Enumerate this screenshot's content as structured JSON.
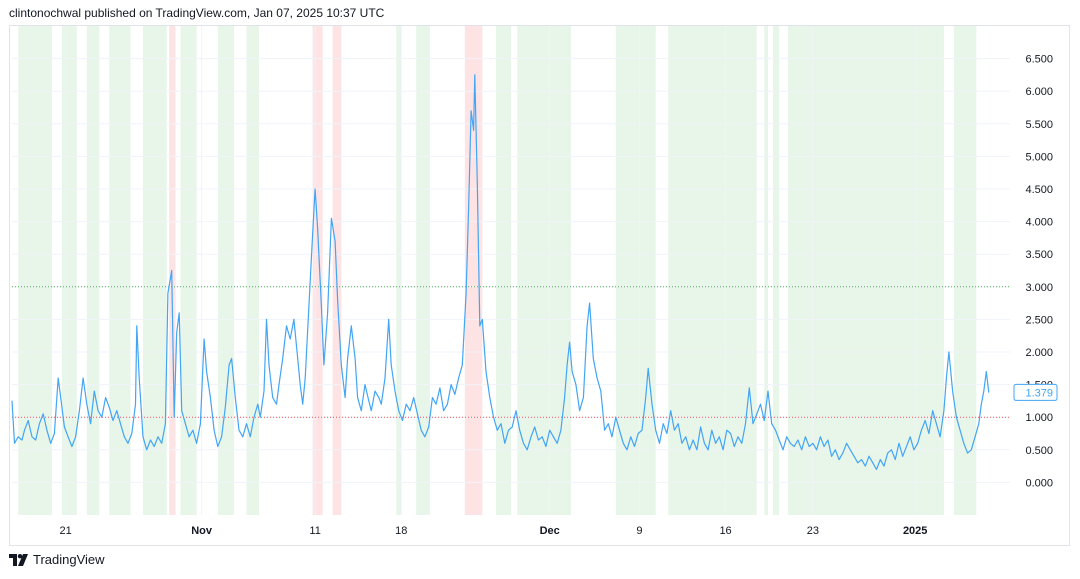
{
  "header": {
    "attribution": "clintonochwal published on TradingView.com, Jan 07, 2025 10:37 UTC"
  },
  "footer": {
    "brand": "TradingView",
    "logo_icon": "tradingview-logo-icon"
  },
  "colors": {
    "line": "#42a5f5",
    "green_band": "#e8f5e9",
    "red_band": "#fde3e4",
    "upper_level": "#4caf50",
    "lower_level": "#ef5350",
    "grid": "#f0f3fa",
    "axis_text": "#131722"
  },
  "chart_data": {
    "type": "line",
    "title": "",
    "xlabel": "",
    "ylabel": "",
    "ylim": [
      -0.5,
      7.0
    ],
    "xlim": [
      0,
      80
    ],
    "y_ticks": [
      0.0,
      0.5,
      1.0,
      1.5,
      2.0,
      2.5,
      3.0,
      3.5,
      4.0,
      4.5,
      5.0,
      5.5,
      6.0,
      6.5
    ],
    "y_tick_labels": [
      "0.000",
      "0.500",
      "1.000",
      "1.500",
      "2.000",
      "2.500",
      "3.000",
      "3.500",
      "4.000",
      "4.500",
      "5.000",
      "5.500",
      "6.000",
      "6.500"
    ],
    "x_ticks": [
      {
        "x": 4.3,
        "label": "21",
        "bold": false
      },
      {
        "x": 15.2,
        "label": "Nov",
        "bold": true
      },
      {
        "x": 24.3,
        "label": "11",
        "bold": false
      },
      {
        "x": 31.2,
        "label": "18",
        "bold": false
      },
      {
        "x": 43.1,
        "label": "Dec",
        "bold": true
      },
      {
        "x": 50.3,
        "label": "9",
        "bold": false
      },
      {
        "x": 57.2,
        "label": "16",
        "bold": false
      },
      {
        "x": 64.2,
        "label": "23",
        "bold": false
      },
      {
        "x": 72.4,
        "label": "2025",
        "bold": true
      }
    ],
    "reference_lines": [
      {
        "name": "upper-level",
        "value": 3.0,
        "color": "#4caf50"
      },
      {
        "name": "lower-level",
        "value": 1.0,
        "color": "#ef5350"
      }
    ],
    "green_bands": [
      [
        0.5,
        3.2
      ],
      [
        4.0,
        5.2
      ],
      [
        6.0,
        7.0
      ],
      [
        7.8,
        9.5
      ],
      [
        10.5,
        12.4
      ],
      [
        13.5,
        14.8
      ],
      [
        16.5,
        17.8
      ],
      [
        18.8,
        19.8
      ],
      [
        30.8,
        31.2
      ],
      [
        32.4,
        33.5
      ],
      [
        38.8,
        40.0
      ],
      [
        40.5,
        44.8
      ],
      [
        48.4,
        51.6
      ],
      [
        52.6,
        59.7
      ],
      [
        60.3,
        60.6
      ],
      [
        61.0,
        61.5
      ],
      [
        62.2,
        74.7
      ],
      [
        75.5,
        77.3
      ]
    ],
    "red_bands": [
      [
        12.6,
        13.1
      ],
      [
        24.1,
        24.9
      ],
      [
        25.7,
        26.4
      ],
      [
        36.3,
        37.7
      ]
    ],
    "series": [
      {
        "name": "value",
        "current_value": "1.379",
        "points": [
          [
            0,
            1.25
          ],
          [
            0.2,
            0.6
          ],
          [
            0.5,
            0.7
          ],
          [
            0.8,
            0.65
          ],
          [
            1.0,
            0.8
          ],
          [
            1.3,
            0.95
          ],
          [
            1.6,
            0.7
          ],
          [
            1.9,
            0.65
          ],
          [
            2.2,
            0.9
          ],
          [
            2.5,
            1.05
          ],
          [
            2.8,
            0.8
          ],
          [
            3.1,
            0.6
          ],
          [
            3.4,
            0.75
          ],
          [
            3.7,
            1.6
          ],
          [
            3.9,
            1.3
          ],
          [
            4.2,
            0.85
          ],
          [
            4.5,
            0.7
          ],
          [
            4.8,
            0.55
          ],
          [
            5.1,
            0.7
          ],
          [
            5.4,
            1.1
          ],
          [
            5.7,
            1.6
          ],
          [
            6.0,
            1.2
          ],
          [
            6.3,
            0.9
          ],
          [
            6.6,
            1.4
          ],
          [
            6.9,
            1.1
          ],
          [
            7.2,
            1.0
          ],
          [
            7.5,
            1.3
          ],
          [
            7.8,
            1.15
          ],
          [
            8.1,
            0.95
          ],
          [
            8.4,
            1.1
          ],
          [
            8.7,
            0.9
          ],
          [
            9.0,
            0.7
          ],
          [
            9.3,
            0.6
          ],
          [
            9.6,
            0.75
          ],
          [
            9.9,
            1.2
          ],
          [
            10.0,
            2.4
          ],
          [
            10.2,
            1.6
          ],
          [
            10.5,
            0.7
          ],
          [
            10.8,
            0.5
          ],
          [
            11.1,
            0.65
          ],
          [
            11.4,
            0.55
          ],
          [
            11.7,
            0.7
          ],
          [
            12.0,
            0.6
          ],
          [
            12.3,
            0.9
          ],
          [
            12.5,
            2.9
          ],
          [
            12.8,
            3.25
          ],
          [
            13.0,
            1.0
          ],
          [
            13.2,
            2.3
          ],
          [
            13.4,
            2.6
          ],
          [
            13.6,
            1.1
          ],
          [
            13.9,
            0.9
          ],
          [
            14.2,
            0.7
          ],
          [
            14.5,
            0.8
          ],
          [
            14.8,
            0.6
          ],
          [
            15.1,
            0.9
          ],
          [
            15.4,
            2.2
          ],
          [
            15.6,
            1.7
          ],
          [
            15.9,
            1.3
          ],
          [
            16.2,
            0.8
          ],
          [
            16.5,
            0.55
          ],
          [
            16.8,
            0.7
          ],
          [
            17.1,
            1.15
          ],
          [
            17.4,
            1.8
          ],
          [
            17.6,
            1.9
          ],
          [
            17.9,
            1.3
          ],
          [
            18.2,
            0.8
          ],
          [
            18.5,
            0.7
          ],
          [
            18.8,
            0.9
          ],
          [
            19.1,
            0.7
          ],
          [
            19.4,
            1.0
          ],
          [
            19.7,
            1.2
          ],
          [
            19.9,
            1.0
          ],
          [
            20.2,
            1.4
          ],
          [
            20.4,
            2.5
          ],
          [
            20.6,
            1.8
          ],
          [
            20.9,
            1.3
          ],
          [
            21.2,
            1.2
          ],
          [
            21.4,
            1.5
          ],
          [
            21.7,
            1.9
          ],
          [
            22.0,
            2.4
          ],
          [
            22.3,
            2.2
          ],
          [
            22.6,
            2.5
          ],
          [
            22.9,
            1.9
          ],
          [
            23.1,
            1.5
          ],
          [
            23.3,
            1.2
          ],
          [
            23.5,
            1.6
          ],
          [
            23.8,
            2.7
          ],
          [
            24.1,
            3.8
          ],
          [
            24.3,
            4.5
          ],
          [
            24.5,
            3.9
          ],
          [
            24.8,
            2.7
          ],
          [
            25.0,
            1.8
          ],
          [
            25.3,
            2.6
          ],
          [
            25.6,
            4.05
          ],
          [
            25.9,
            3.7
          ],
          [
            26.1,
            2.8
          ],
          [
            26.4,
            1.8
          ],
          [
            26.7,
            1.3
          ],
          [
            26.9,
            1.9
          ],
          [
            27.2,
            2.4
          ],
          [
            27.5,
            1.9
          ],
          [
            27.7,
            1.3
          ],
          [
            28.0,
            1.1
          ],
          [
            28.3,
            1.5
          ],
          [
            28.6,
            1.25
          ],
          [
            28.8,
            1.1
          ],
          [
            29.1,
            1.4
          ],
          [
            29.4,
            1.3
          ],
          [
            29.6,
            1.2
          ],
          [
            29.9,
            1.6
          ],
          [
            30.2,
            2.5
          ],
          [
            30.4,
            1.8
          ],
          [
            30.7,
            1.4
          ],
          [
            31.0,
            1.1
          ],
          [
            31.3,
            0.95
          ],
          [
            31.6,
            1.2
          ],
          [
            31.9,
            1.1
          ],
          [
            32.2,
            1.3
          ],
          [
            32.5,
            1.05
          ],
          [
            32.8,
            0.8
          ],
          [
            33.1,
            0.7
          ],
          [
            33.4,
            0.85
          ],
          [
            33.7,
            1.3
          ],
          [
            34.0,
            1.2
          ],
          [
            34.3,
            1.45
          ],
          [
            34.6,
            1.1
          ],
          [
            34.9,
            1.2
          ],
          [
            35.2,
            1.5
          ],
          [
            35.5,
            1.35
          ],
          [
            35.8,
            1.6
          ],
          [
            36.1,
            1.8
          ],
          [
            36.4,
            2.9
          ],
          [
            36.6,
            4.2
          ],
          [
            36.8,
            5.7
          ],
          [
            37.0,
            5.4
          ],
          [
            37.1,
            6.25
          ],
          [
            37.3,
            4.6
          ],
          [
            37.5,
            2.4
          ],
          [
            37.7,
            2.5
          ],
          [
            38.0,
            1.7
          ],
          [
            38.3,
            1.3
          ],
          [
            38.6,
            1.0
          ],
          [
            38.9,
            0.8
          ],
          [
            39.2,
            0.9
          ],
          [
            39.5,
            0.6
          ],
          [
            39.8,
            0.8
          ],
          [
            40.1,
            0.85
          ],
          [
            40.4,
            1.1
          ],
          [
            40.7,
            0.8
          ],
          [
            41.0,
            0.6
          ],
          [
            41.3,
            0.5
          ],
          [
            41.6,
            0.7
          ],
          [
            41.9,
            0.85
          ],
          [
            42.2,
            0.65
          ],
          [
            42.5,
            0.7
          ],
          [
            42.8,
            0.55
          ],
          [
            43.1,
            0.8
          ],
          [
            43.4,
            0.7
          ],
          [
            43.7,
            0.6
          ],
          [
            44.0,
            0.8
          ],
          [
            44.3,
            1.3
          ],
          [
            44.5,
            1.8
          ],
          [
            44.7,
            2.15
          ],
          [
            44.9,
            1.7
          ],
          [
            45.2,
            1.5
          ],
          [
            45.5,
            1.1
          ],
          [
            45.8,
            1.3
          ],
          [
            46.1,
            2.4
          ],
          [
            46.3,
            2.75
          ],
          [
            46.6,
            1.9
          ],
          [
            46.9,
            1.6
          ],
          [
            47.2,
            1.4
          ],
          [
            47.5,
            0.8
          ],
          [
            47.8,
            0.9
          ],
          [
            48.1,
            0.7
          ],
          [
            48.4,
            1.0
          ],
          [
            48.7,
            0.8
          ],
          [
            49.0,
            0.6
          ],
          [
            49.3,
            0.5
          ],
          [
            49.6,
            0.7
          ],
          [
            49.9,
            0.55
          ],
          [
            50.2,
            0.75
          ],
          [
            50.5,
            0.8
          ],
          [
            50.8,
            1.3
          ],
          [
            51.0,
            1.75
          ],
          [
            51.3,
            1.2
          ],
          [
            51.6,
            0.8
          ],
          [
            51.9,
            0.6
          ],
          [
            52.2,
            0.9
          ],
          [
            52.5,
            0.75
          ],
          [
            52.8,
            1.1
          ],
          [
            53.1,
            0.8
          ],
          [
            53.4,
            0.9
          ],
          [
            53.7,
            0.6
          ],
          [
            54.0,
            0.7
          ],
          [
            54.3,
            0.5
          ],
          [
            54.6,
            0.65
          ],
          [
            54.9,
            0.5
          ],
          [
            55.2,
            0.85
          ],
          [
            55.5,
            0.6
          ],
          [
            55.8,
            0.5
          ],
          [
            56.1,
            0.8
          ],
          [
            56.4,
            0.6
          ],
          [
            56.7,
            0.7
          ],
          [
            57.0,
            0.5
          ],
          [
            57.3,
            0.8
          ],
          [
            57.6,
            0.75
          ],
          [
            57.9,
            0.55
          ],
          [
            58.2,
            0.7
          ],
          [
            58.5,
            0.6
          ],
          [
            58.8,
            0.9
          ],
          [
            59.1,
            1.45
          ],
          [
            59.4,
            0.9
          ],
          [
            59.7,
            1.05
          ],
          [
            60.0,
            1.2
          ],
          [
            60.3,
            0.95
          ],
          [
            60.6,
            1.4
          ],
          [
            60.9,
            0.9
          ],
          [
            61.2,
            0.8
          ],
          [
            61.5,
            0.65
          ],
          [
            61.8,
            0.5
          ],
          [
            62.1,
            0.7
          ],
          [
            62.4,
            0.6
          ],
          [
            62.7,
            0.55
          ],
          [
            63.0,
            0.65
          ],
          [
            63.3,
            0.5
          ],
          [
            63.6,
            0.7
          ],
          [
            63.9,
            0.55
          ],
          [
            64.2,
            0.6
          ],
          [
            64.5,
            0.5
          ],
          [
            64.8,
            0.7
          ],
          [
            65.1,
            0.55
          ],
          [
            65.4,
            0.65
          ],
          [
            65.7,
            0.4
          ],
          [
            66.0,
            0.5
          ],
          [
            66.3,
            0.35
          ],
          [
            66.6,
            0.45
          ],
          [
            66.9,
            0.6
          ],
          [
            67.2,
            0.5
          ],
          [
            67.5,
            0.4
          ],
          [
            67.8,
            0.3
          ],
          [
            68.1,
            0.35
          ],
          [
            68.4,
            0.25
          ],
          [
            68.7,
            0.4
          ],
          [
            69.0,
            0.3
          ],
          [
            69.3,
            0.2
          ],
          [
            69.6,
            0.35
          ],
          [
            69.9,
            0.25
          ],
          [
            70.2,
            0.45
          ],
          [
            70.5,
            0.5
          ],
          [
            70.8,
            0.35
          ],
          [
            71.1,
            0.6
          ],
          [
            71.4,
            0.4
          ],
          [
            71.7,
            0.55
          ],
          [
            72.0,
            0.7
          ],
          [
            72.3,
            0.5
          ],
          [
            72.6,
            0.6
          ],
          [
            72.9,
            0.8
          ],
          [
            73.2,
            0.95
          ],
          [
            73.5,
            0.75
          ],
          [
            73.8,
            1.1
          ],
          [
            74.1,
            0.9
          ],
          [
            74.4,
            0.7
          ],
          [
            74.7,
            1.1
          ],
          [
            74.9,
            1.6
          ],
          [
            75.1,
            2.0
          ],
          [
            75.4,
            1.4
          ],
          [
            75.7,
            1.0
          ],
          [
            76.0,
            0.8
          ],
          [
            76.3,
            0.6
          ],
          [
            76.6,
            0.45
          ],
          [
            76.9,
            0.5
          ],
          [
            77.2,
            0.7
          ],
          [
            77.5,
            0.9
          ],
          [
            77.7,
            1.2
          ],
          [
            77.9,
            1.4
          ],
          [
            78.1,
            1.7
          ],
          [
            78.3,
            1.38
          ]
        ]
      }
    ]
  }
}
